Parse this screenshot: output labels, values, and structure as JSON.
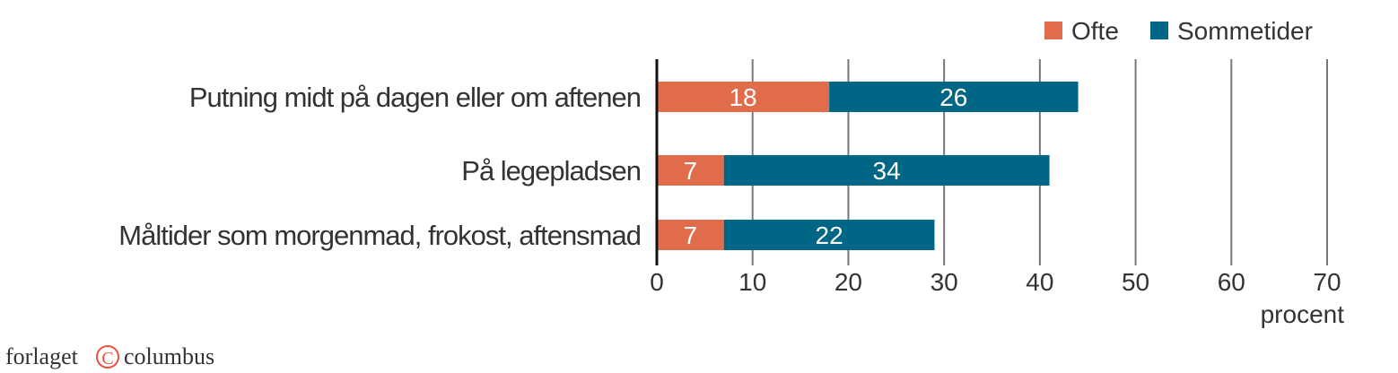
{
  "chart_data": {
    "type": "bar",
    "orientation": "horizontal",
    "stacked": true,
    "categories": [
      "Putning midt på dagen eller om aftenen",
      "På legepladsen",
      "Måltider som morgenmad, frokost, aftensmad"
    ],
    "series": [
      {
        "name": "Ofte",
        "values": [
          18,
          7,
          7
        ],
        "color": "#e06c4c"
      },
      {
        "name": "Sommetider",
        "values": [
          26,
          34,
          22
        ],
        "color": "#006685"
      }
    ],
    "xlabel": "procent",
    "xlim": [
      0,
      70
    ],
    "xticks": [
      0,
      10,
      20,
      30,
      40,
      50,
      60,
      70
    ],
    "grid": true,
    "legend": "top-right",
    "data_labels": true
  },
  "branding": {
    "logo_left": "forlaget",
    "logo_symbol": "©",
    "logo_right": "columbus",
    "logo_color": "#e8553f"
  }
}
